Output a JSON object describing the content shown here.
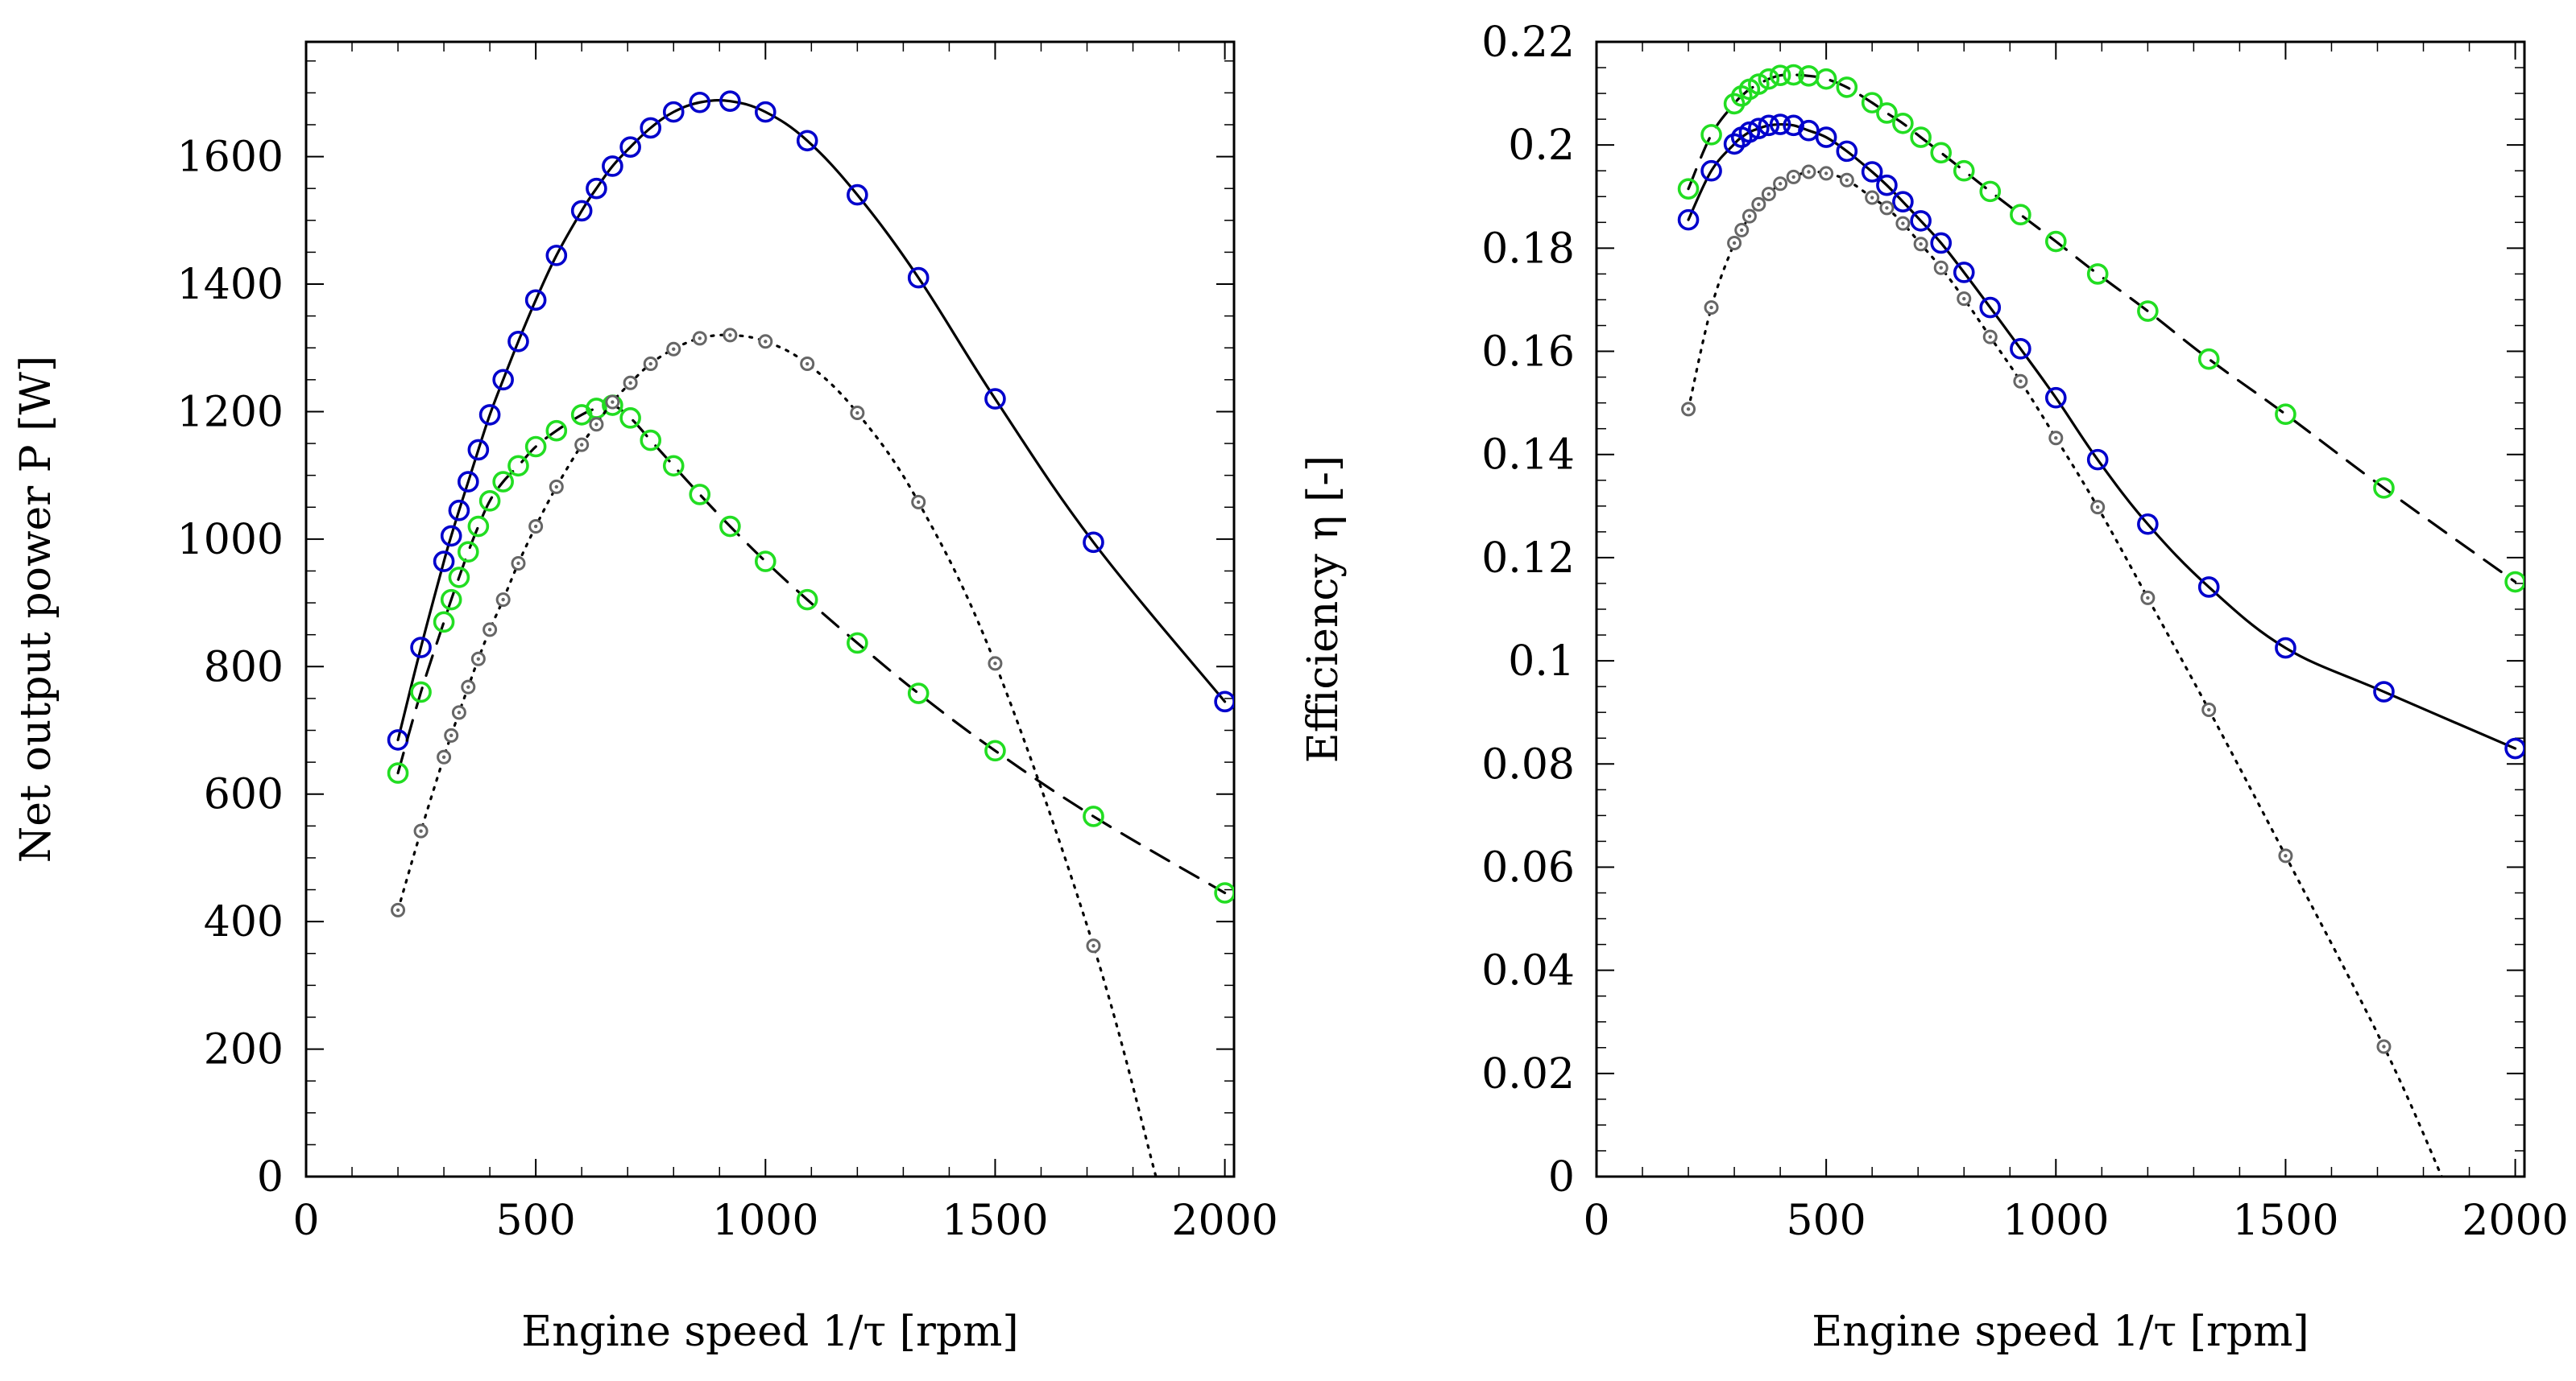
{
  "chart_data": [
    {
      "type": "line",
      "xlabel": "Engine speed 1/τ [rpm]",
      "ylabel": "Net output power P [W]",
      "xlim": [
        0,
        2020
      ],
      "ylim": [
        0,
        1780
      ],
      "xticks": [
        0,
        500,
        1000,
        1500,
        2000
      ],
      "yticks": [
        0,
        200,
        400,
        600,
        800,
        1000,
        1200,
        1400,
        1600
      ],
      "xtick_labels": [
        "0",
        "500",
        "1000",
        "1500",
        "2000"
      ],
      "ytick_labels": [
        "0",
        "200",
        "400",
        "600",
        "800",
        "1000",
        "1200",
        "1400",
        "1600"
      ],
      "grid": false,
      "series": [
        {
          "name": "blue solid",
          "color": "#0000cc",
          "line": "solid",
          "marker": "open-circle",
          "x": [
            200,
            250,
            300,
            316,
            333,
            353,
            375,
            400,
            429,
            462,
            500,
            545,
            600,
            632,
            667,
            706,
            750,
            800,
            857,
            923,
            1000,
            1091,
            1200,
            1333,
            1500,
            1714,
            2000
          ],
          "y": [
            685,
            830,
            965,
            1005,
            1045,
            1090,
            1140,
            1195,
            1250,
            1310,
            1375,
            1445,
            1515,
            1550,
            1585,
            1615,
            1645,
            1670,
            1685,
            1687,
            1670,
            1625,
            1540,
            1410,
            1220,
            995,
            745
          ]
        },
        {
          "name": "green dashed",
          "color": "#22dd22",
          "line": "dashed",
          "marker": "open-circle",
          "x": [
            200,
            250,
            300,
            316,
            333,
            353,
            375,
            400,
            429,
            462,
            500,
            545,
            600,
            632,
            667,
            706,
            750,
            800,
            857,
            923,
            1000,
            1091,
            1200,
            1333,
            1500,
            1714,
            2000
          ],
          "y": [
            633,
            760,
            870,
            905,
            940,
            980,
            1020,
            1060,
            1090,
            1115,
            1145,
            1170,
            1195,
            1205,
            1210,
            1190,
            1155,
            1115,
            1070,
            1020,
            965,
            905,
            837,
            758,
            668,
            565,
            445
          ]
        },
        {
          "name": "gray dotted",
          "color": "#666666",
          "line": "dotted",
          "marker": "dot-circle",
          "x": [
            200,
            250,
            300,
            316,
            333,
            353,
            375,
            400,
            429,
            462,
            500,
            545,
            600,
            632,
            667,
            706,
            750,
            800,
            857,
            923,
            1000,
            1091,
            1200,
            1333,
            1500,
            1714,
            1850
          ],
          "y": [
            418,
            542,
            658,
            692,
            728,
            768,
            812,
            858,
            905,
            962,
            1020,
            1082,
            1148,
            1180,
            1215,
            1245,
            1275,
            1298,
            1315,
            1320,
            1310,
            1275,
            1198,
            1058,
            805,
            362,
            0
          ]
        }
      ]
    },
    {
      "type": "line",
      "xlabel": "Engine speed 1/τ [rpm]",
      "ylabel": "Efficiency η [-]",
      "xlim": [
        0,
        2020
      ],
      "ylim": [
        0,
        0.22
      ],
      "xticks": [
        0,
        500,
        1000,
        1500,
        2000
      ],
      "yticks": [
        0,
        0.02,
        0.04,
        0.06,
        0.08,
        0.1,
        0.12,
        0.14,
        0.16,
        0.18,
        0.2,
        0.22
      ],
      "xtick_labels": [
        "0",
        "500",
        "1000",
        "1500",
        "2000"
      ],
      "ytick_labels": [
        "0",
        "0.02",
        "0.04",
        "0.06",
        "0.08",
        "0.1",
        "0.12",
        "0.14",
        "0.16",
        "0.18",
        "0.2",
        "0.22"
      ],
      "grid": false,
      "series": [
        {
          "name": "blue solid",
          "color": "#0000cc",
          "line": "solid",
          "marker": "open-circle",
          "x": [
            200,
            250,
            300,
            316,
            333,
            353,
            375,
            400,
            429,
            462,
            500,
            545,
            600,
            632,
            667,
            706,
            750,
            800,
            857,
            923,
            1000,
            1091,
            1200,
            1333,
            1500,
            1714,
            2000
          ],
          "y": [
            0.1855,
            0.195,
            0.2002,
            0.2015,
            0.2025,
            0.2032,
            0.2038,
            0.204,
            0.2038,
            0.2028,
            0.2015,
            0.1988,
            0.1948,
            0.1922,
            0.189,
            0.1853,
            0.181,
            0.1753,
            0.1685,
            0.1605,
            0.151,
            0.139,
            0.1265,
            0.1143,
            0.1025,
            0.094,
            0.083
          ]
        },
        {
          "name": "green dashed",
          "color": "#22dd22",
          "line": "dashed",
          "marker": "open-circle",
          "x": [
            200,
            250,
            300,
            316,
            333,
            353,
            375,
            400,
            429,
            462,
            500,
            545,
            600,
            632,
            667,
            706,
            750,
            800,
            857,
            923,
            1000,
            1091,
            1200,
            1333,
            1500,
            1714,
            2000
          ],
          "y": [
            0.1915,
            0.202,
            0.208,
            0.2095,
            0.2108,
            0.2118,
            0.2128,
            0.2135,
            0.2136,
            0.2134,
            0.2128,
            0.2112,
            0.2082,
            0.2062,
            0.2042,
            0.2015,
            0.1985,
            0.195,
            0.191,
            0.1865,
            0.1813,
            0.175,
            0.1678,
            0.1585,
            0.1478,
            0.1335,
            0.1153
          ]
        },
        {
          "name": "gray dotted",
          "color": "#666666",
          "line": "dotted",
          "marker": "dot-circle",
          "x": [
            200,
            250,
            300,
            316,
            333,
            353,
            375,
            400,
            429,
            462,
            500,
            545,
            600,
            632,
            667,
            706,
            750,
            800,
            857,
            923,
            1000,
            1091,
            1200,
            1333,
            1500,
            1714,
            1840
          ],
          "y": [
            0.1488,
            0.1685,
            0.181,
            0.1835,
            0.1862,
            0.1885,
            0.1905,
            0.1925,
            0.1938,
            0.1948,
            0.1945,
            0.1932,
            0.1898,
            0.1878,
            0.1848,
            0.1808,
            0.1762,
            0.1702,
            0.1628,
            0.1542,
            0.1432,
            0.1298,
            0.1122,
            0.0905,
            0.0622,
            0.0252,
            0
          ]
        }
      ]
    }
  ]
}
